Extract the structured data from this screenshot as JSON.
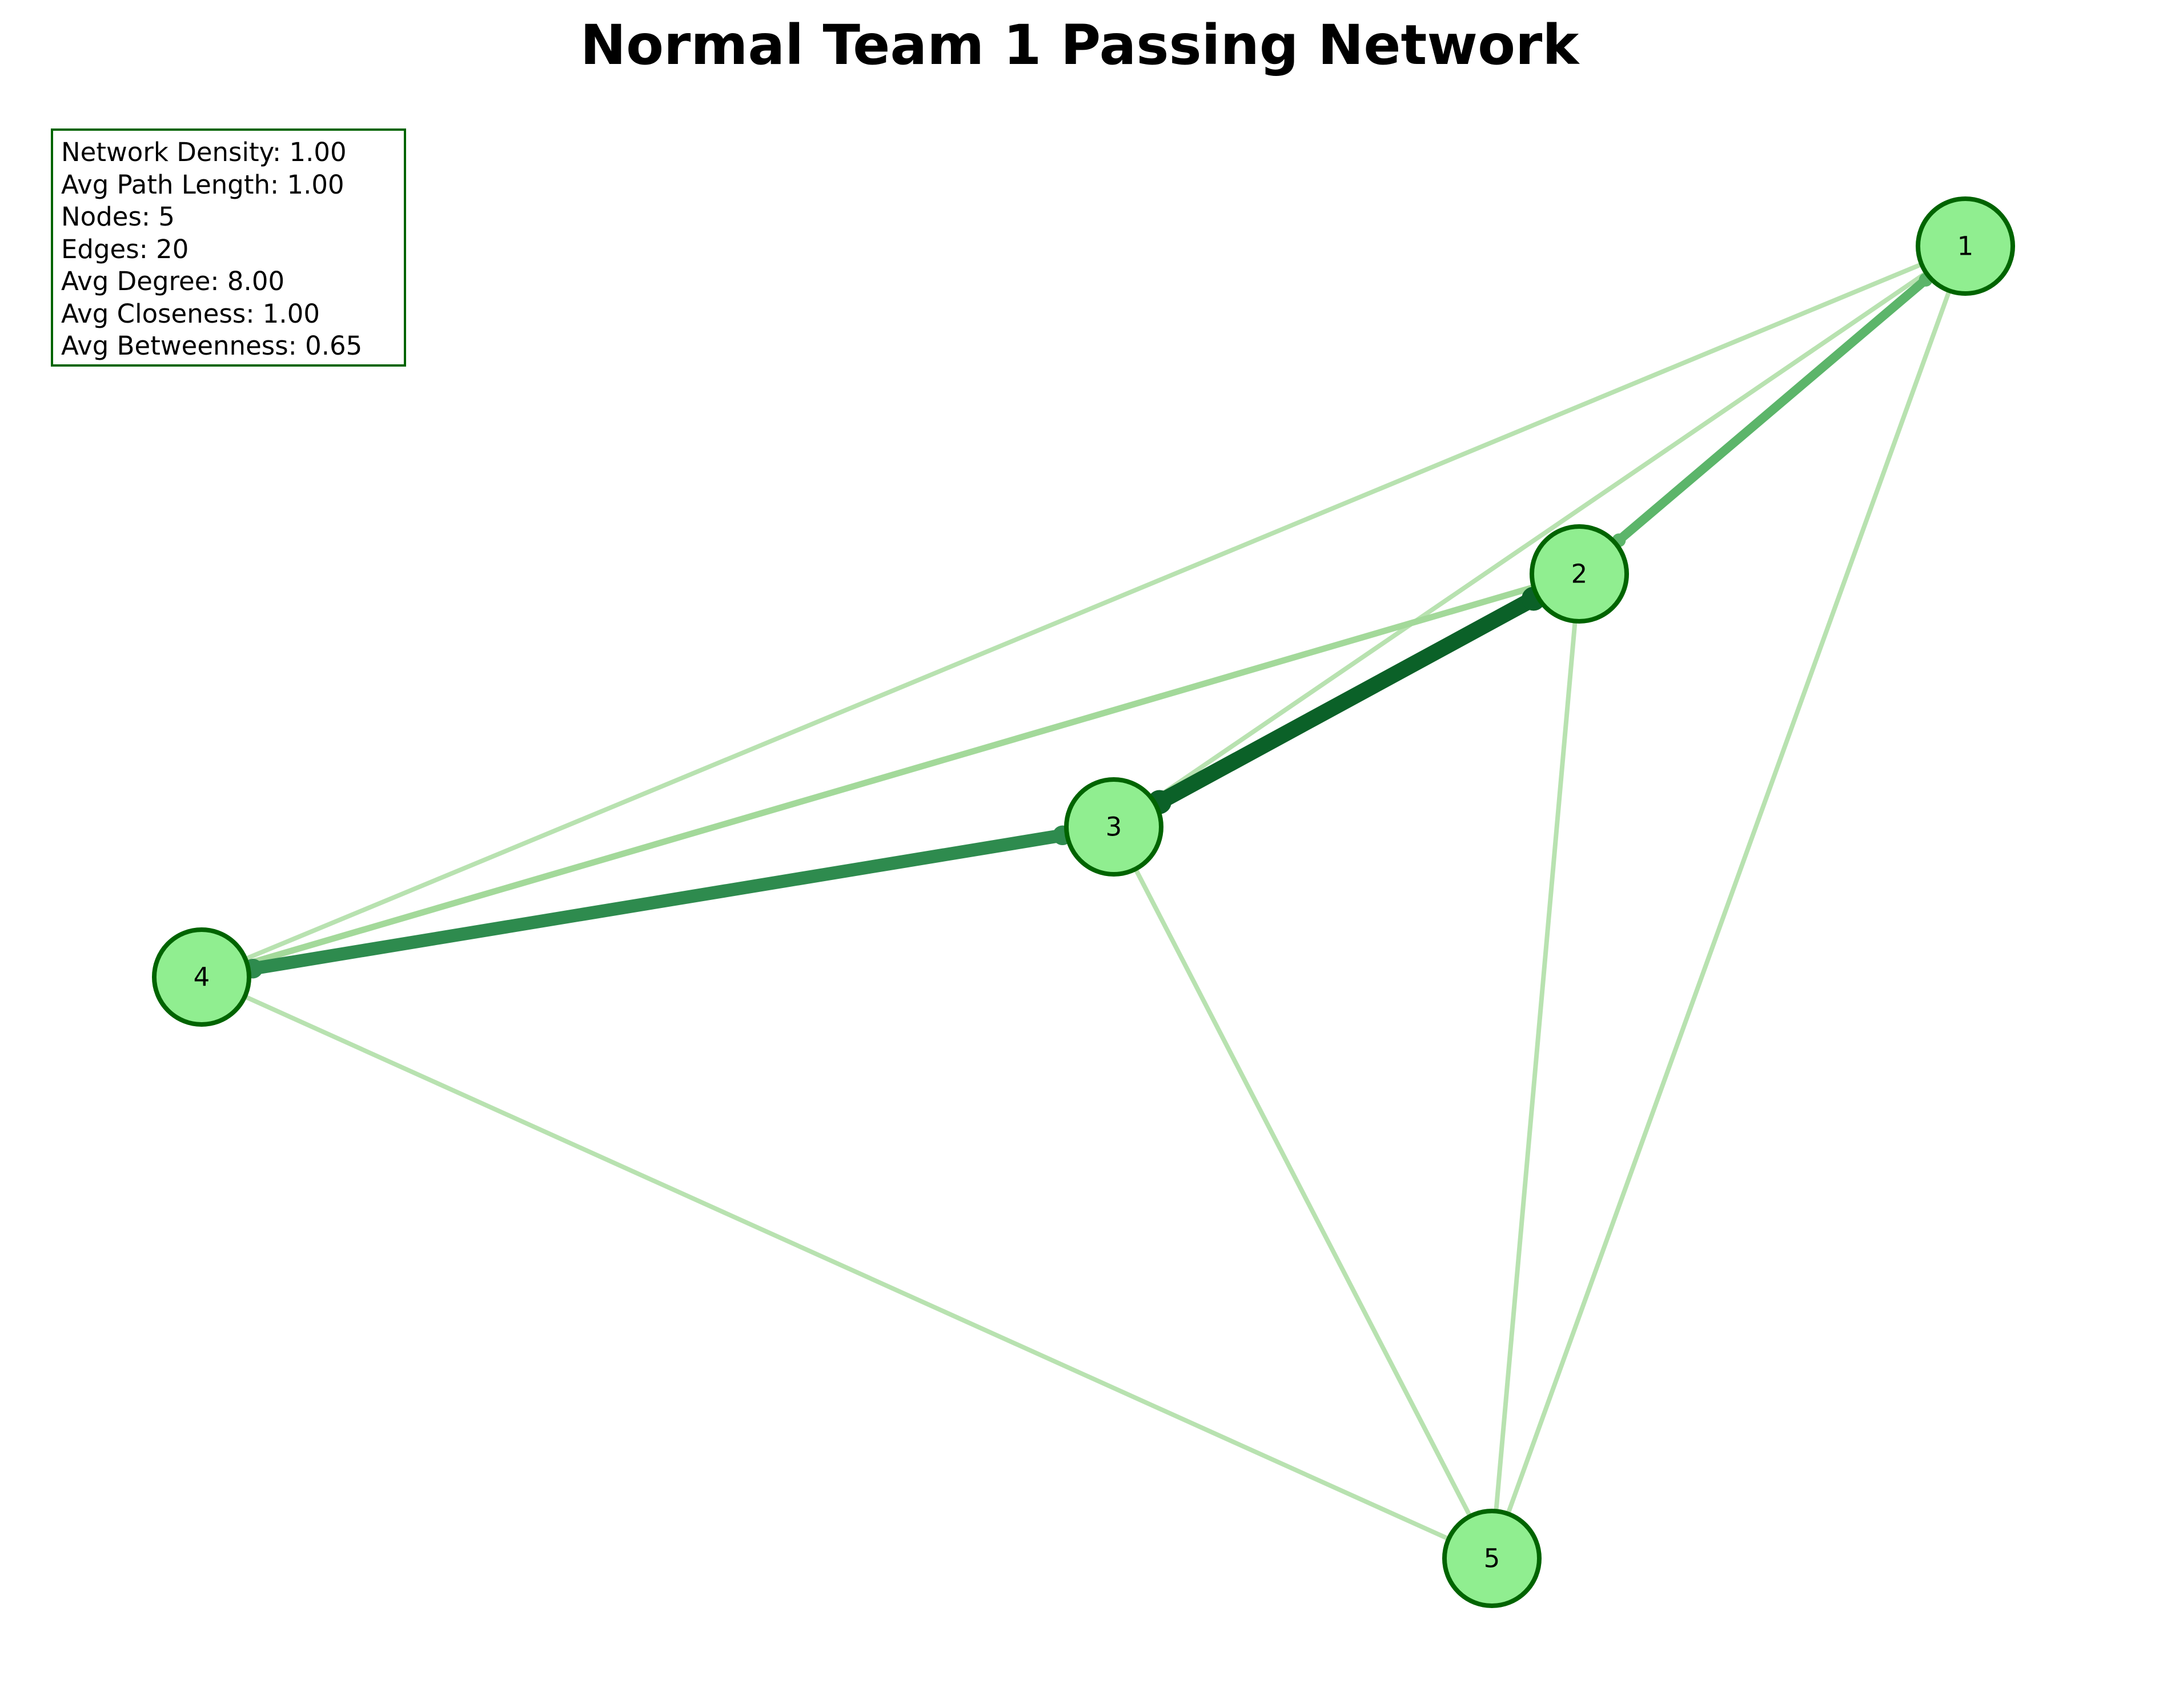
{
  "title": "Normal Team 1 Passing Network",
  "stats": [
    {
      "label": "Network Density",
      "value": "1.00"
    },
    {
      "label": "Avg Path Length",
      "value": "1.00"
    },
    {
      "label": "Nodes",
      "value": "5"
    },
    {
      "label": "Edges",
      "value": "20"
    },
    {
      "label": "Avg Degree",
      "value": "8.00"
    },
    {
      "label": "Avg Closeness",
      "value": "1.00"
    },
    {
      "label": "Avg Betweenness",
      "value": "0.65"
    }
  ],
  "colors": {
    "node_fill": "#90ee90",
    "node_stroke": "#006400",
    "stats_border": "#006400",
    "edge_light": "#b8e2b0",
    "edge_light_mid": "#a3d99a",
    "edge_medium": "#5cb56a",
    "edge_strong": "#2e8b4e",
    "edge_strongest": "#0b6128"
  },
  "network": {
    "nodes": [
      {
        "id": "1",
        "label": "1"
      },
      {
        "id": "2",
        "label": "2"
      },
      {
        "id": "3",
        "label": "3"
      },
      {
        "id": "4",
        "label": "4"
      },
      {
        "id": "5",
        "label": "5"
      }
    ],
    "edges": [
      {
        "source": "1",
        "target": "4",
        "strength": "light"
      },
      {
        "source": "1",
        "target": "3",
        "strength": "light"
      },
      {
        "source": "1",
        "target": "2",
        "strength": "medium"
      },
      {
        "source": "1",
        "target": "5",
        "strength": "light"
      },
      {
        "source": "2",
        "target": "4",
        "strength": "light-mid"
      },
      {
        "source": "2",
        "target": "3",
        "strength": "strongest"
      },
      {
        "source": "2",
        "target": "5",
        "strength": "light"
      },
      {
        "source": "3",
        "target": "4",
        "strength": "strong"
      },
      {
        "source": "3",
        "target": "5",
        "strength": "light"
      },
      {
        "source": "4",
        "target": "5",
        "strength": "light"
      }
    ]
  }
}
